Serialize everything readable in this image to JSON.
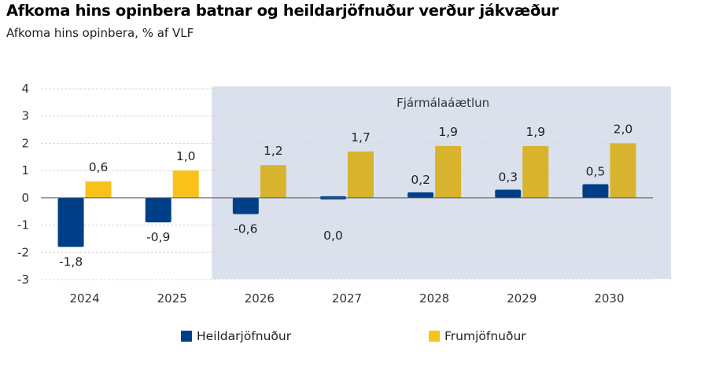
{
  "title": "Afkoma hins opinbera batnar og heildarjöfnuður verður jákvæður",
  "subtitle": "Afkoma hins opinbera, % af VLF",
  "colors": {
    "series1": "#003f87",
    "series2_actual": "#f9c21b",
    "series2_forecast": "#d8b32e",
    "forecast_band": "#dbe1ec",
    "grid": "#d8d8d8"
  },
  "chart_data": {
    "type": "bar",
    "categories": [
      "2024",
      "2025",
      "2026",
      "2027",
      "2028",
      "2029",
      "2030"
    ],
    "series": [
      {
        "name": "Heildarjöfnuður",
        "values": [
          -1.8,
          -0.9,
          -0.6,
          0.0,
          0.2,
          0.3,
          0.5
        ],
        "labels": [
          "-1,8",
          "-0,9",
          "-0,6",
          "0,0",
          "0,2",
          "0,3",
          "0,5"
        ]
      },
      {
        "name": "Frumjöfnuður",
        "values": [
          0.6,
          1.0,
          1.2,
          1.7,
          1.9,
          1.9,
          2.0
        ],
        "labels": [
          "0,6",
          "1,0",
          "1,2",
          "1,7",
          "1,9",
          "1,9",
          "2,0"
        ]
      }
    ],
    "ylim": [
      -3,
      4
    ],
    "yticks": [
      "-3",
      "-2",
      "-1",
      "0",
      "1",
      "2",
      "3",
      "4"
    ],
    "grid": true,
    "forecast_region": {
      "label": "Fjármálaáætlun",
      "from_category": "2026",
      "to_category": "2030"
    },
    "legend_position": "bottom"
  }
}
